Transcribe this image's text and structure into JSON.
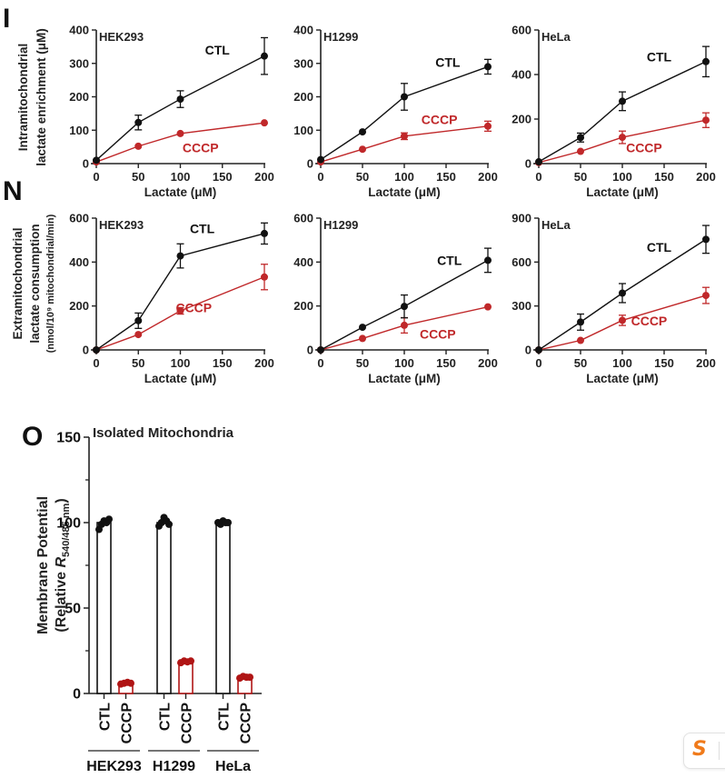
{
  "panels": {
    "I": {
      "letter": "I",
      "ylabel_line1": "Intramitochondrial",
      "ylabel_line2": "lactate enrichment (μM)",
      "xlabel": "Lactate (μM)"
    },
    "N": {
      "letter": "N",
      "ylabel_line1": "Extramitochondrial",
      "ylabel_line2": "lactate consumption",
      "ylabel_line3": "(nmol/10⁹ mitochondrial/min)",
      "xlabel": "Lactate (μM)"
    },
    "O": {
      "letter": "O"
    }
  },
  "badge": {
    "icon": "s-logo-icon",
    "glyph": "S",
    "color": "#f07a1a"
  },
  "colors": {
    "ctl": "#111111",
    "cccp": "#c0282a",
    "cccp_bar": "#b01515"
  },
  "chart_data": [
    {
      "id": "I-HEK293",
      "type": "line",
      "title": "HEK293",
      "xlabel": "Lactate (μM)",
      "ylabel": "Intramitochondrial lactate enrichment (μM)",
      "x": [
        0,
        50,
        100,
        200
      ],
      "xticks": [
        0,
        50,
        100,
        150,
        200
      ],
      "xlim": [
        0,
        200
      ],
      "ylim": [
        0,
        400
      ],
      "yticks": [
        0,
        100,
        200,
        300,
        400
      ],
      "series": [
        {
          "name": "CTL",
          "values": [
            10,
            123,
            193,
            322
          ],
          "errors": [
            5,
            22,
            25,
            55
          ]
        },
        {
          "name": "CCCP",
          "values": [
            5,
            52,
            90,
            122
          ],
          "errors": [
            3,
            4,
            8,
            4
          ]
        }
      ]
    },
    {
      "id": "I-H1299",
      "type": "line",
      "title": "H1299",
      "xlabel": "Lactate (μM)",
      "ylabel": "",
      "x": [
        0,
        50,
        100,
        200
      ],
      "xticks": [
        0,
        50,
        100,
        150,
        200
      ],
      "xlim": [
        0,
        200
      ],
      "ylim": [
        0,
        400
      ],
      "yticks": [
        0,
        100,
        200,
        300,
        400
      ],
      "series": [
        {
          "name": "CTL",
          "values": [
            12,
            95,
            200,
            290
          ],
          "errors": [
            4,
            4,
            40,
            22
          ]
        },
        {
          "name": "CCCP",
          "values": [
            5,
            43,
            82,
            112
          ],
          "errors": [
            3,
            4,
            10,
            15
          ]
        }
      ]
    },
    {
      "id": "I-HeLa",
      "type": "line",
      "title": "HeLa",
      "xlabel": "Lactate (μM)",
      "ylabel": "",
      "x": [
        0,
        50,
        100,
        200
      ],
      "xticks": [
        0,
        50,
        100,
        150,
        200
      ],
      "xlim": [
        0,
        200
      ],
      "ylim": [
        0,
        600
      ],
      "yticks": [
        0,
        200,
        400,
        600
      ],
      "series": [
        {
          "name": "CTL",
          "values": [
            8,
            117,
            280,
            458
          ],
          "errors": [
            4,
            20,
            42,
            68
          ]
        },
        {
          "name": "CCCP",
          "values": [
            5,
            55,
            118,
            195
          ],
          "errors": [
            3,
            5,
            28,
            33
          ]
        }
      ]
    },
    {
      "id": "N-HEK293",
      "type": "line",
      "title": "HEK293",
      "xlabel": "Lactate (μM)",
      "ylabel": "Extramitochondrial lactate consumption (nmol/10⁹ mitochondrial/min)",
      "x": [
        0,
        50,
        100,
        200
      ],
      "xticks": [
        0,
        50,
        100,
        150,
        200
      ],
      "xlim": [
        0,
        200
      ],
      "ylim": [
        0,
        600
      ],
      "yticks": [
        0,
        200,
        400,
        600
      ],
      "series": [
        {
          "name": "CTL",
          "values": [
            0,
            133,
            428,
            530
          ],
          "errors": [
            3,
            35,
            55,
            48
          ]
        },
        {
          "name": "CCCP",
          "values": [
            0,
            70,
            178,
            332
          ],
          "errors": [
            3,
            5,
            15,
            58
          ]
        }
      ]
    },
    {
      "id": "N-H1299",
      "type": "line",
      "title": "H1299",
      "xlabel": "Lactate (μM)",
      "ylabel": "",
      "x": [
        0,
        50,
        100,
        200
      ],
      "xticks": [
        0,
        50,
        100,
        150,
        200
      ],
      "xlim": [
        0,
        200
      ],
      "ylim": [
        0,
        600
      ],
      "yticks": [
        0,
        200,
        400,
        600
      ],
      "series": [
        {
          "name": "CTL",
          "values": [
            0,
            103,
            198,
            408
          ],
          "errors": [
            3,
            5,
            52,
            55
          ]
        },
        {
          "name": "CCCP",
          "values": [
            0,
            52,
            112,
            196
          ],
          "errors": [
            3,
            4,
            35,
            5
          ]
        }
      ]
    },
    {
      "id": "N-HeLa",
      "type": "line",
      "title": "HeLa",
      "xlabel": "Lactate (μM)",
      "ylabel": "",
      "x": [
        0,
        50,
        100,
        200
      ],
      "xticks": [
        0,
        50,
        100,
        150,
        200
      ],
      "xlim": [
        0,
        200
      ],
      "ylim": [
        0,
        900
      ],
      "yticks": [
        0,
        300,
        600,
        900
      ],
      "series": [
        {
          "name": "CTL",
          "values": [
            0,
            190,
            388,
            755
          ],
          "errors": [
            3,
            55,
            65,
            95
          ]
        },
        {
          "name": "CCCP",
          "values": [
            0,
            65,
            202,
            372
          ],
          "errors": [
            3,
            5,
            35,
            55
          ]
        }
      ]
    },
    {
      "id": "O",
      "type": "bar",
      "title": "Isolated Mitochondria",
      "ylabel_line1": "Membrane Potential",
      "ylabel_line2_prefix": "(Relative ",
      "ylabel_line2_italic": "R",
      "ylabel_line2_sub": "540/485 nm",
      "ylabel_line2_suffix": ")",
      "ylim": [
        0,
        150
      ],
      "yticks": [
        0,
        50,
        100,
        150
      ],
      "minor_yticks": [
        25,
        75,
        125
      ],
      "groups": [
        "HEK293",
        "H1299",
        "HeLa"
      ],
      "categories": [
        "CTL",
        "CCCP"
      ],
      "series": [
        {
          "name": "CTL",
          "values": [
            100,
            100,
            100
          ],
          "points": [
            [
              96,
              99,
              101,
              100,
              102
            ],
            [
              98,
              100,
              103,
              101,
              99
            ],
            [
              100,
              99,
              101,
              100,
              100
            ]
          ]
        },
        {
          "name": "CCCP",
          "values": [
            6,
            18.5,
            9.5
          ],
          "points": [
            [
              5.5,
              6,
              6.5,
              6
            ],
            [
              18,
              19,
              18.5,
              19
            ],
            [
              9,
              10,
              9.5,
              9.5
            ]
          ]
        }
      ]
    }
  ]
}
